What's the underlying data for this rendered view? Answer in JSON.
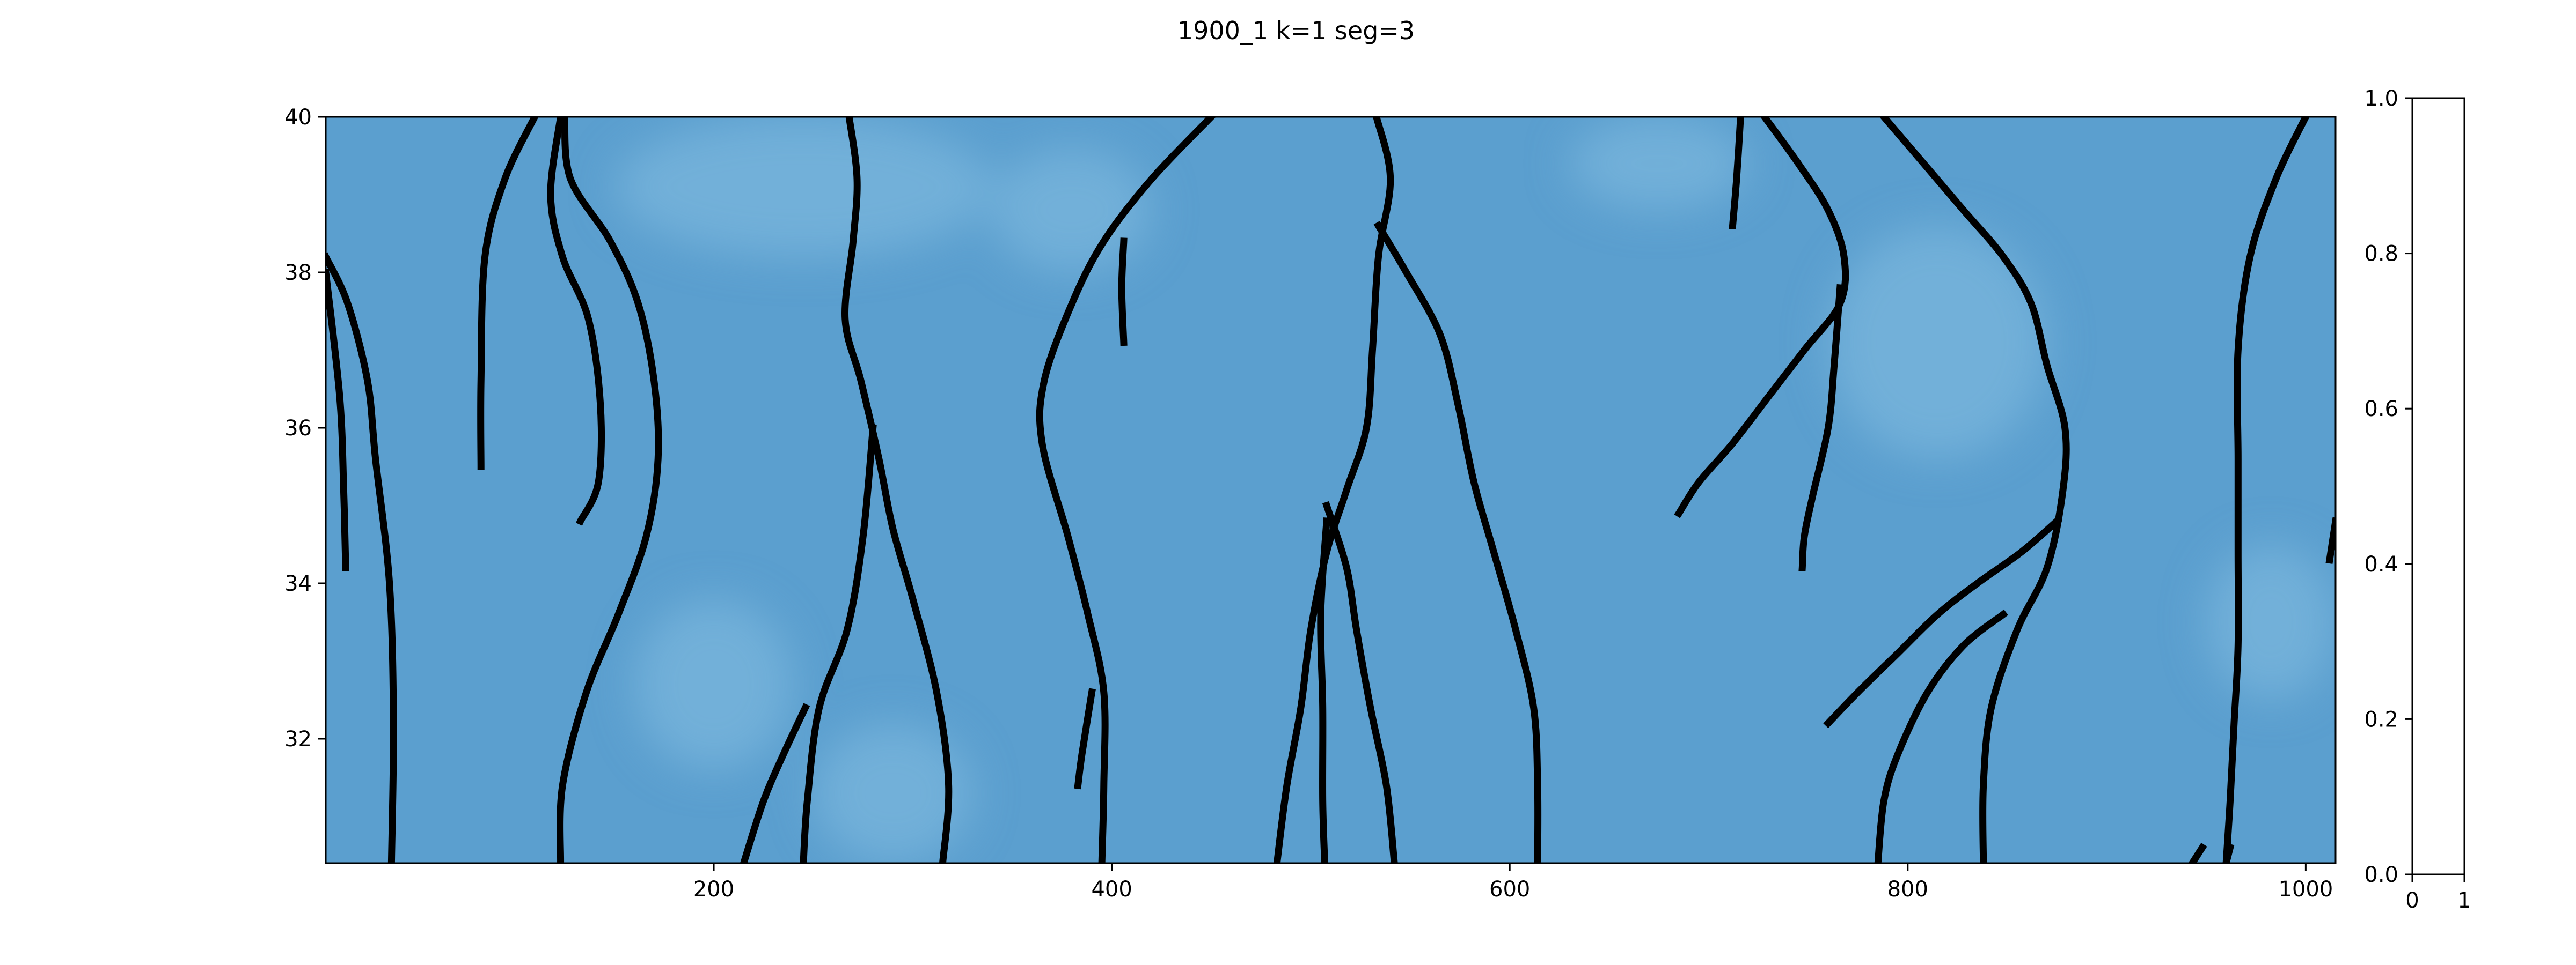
{
  "figure": {
    "title": "1900_1 k=1   seg=3"
  },
  "chart_data": [
    {
      "type": "heatmap",
      "title": "1900_1 k=1   seg=3",
      "xlabel": "",
      "ylabel": "",
      "xlim": [
        5,
        1015
      ],
      "ylim": [
        30.4,
        40.0
      ],
      "x_ticks": [
        200,
        400,
        600,
        800,
        1000
      ],
      "x_tick_labels": [
        "200",
        "400",
        "600",
        "800",
        "1000"
      ],
      "y_ticks": [
        32,
        34,
        36,
        38,
        40
      ],
      "y_tick_labels": [
        "32",
        "34",
        "36",
        "38",
        "40"
      ],
      "grid": false,
      "colors": {
        "field": "#5b9fcf",
        "field_light": "#7ab5dc",
        "contour": "#000000"
      },
      "light_patches": [
        {
          "x": [
            150,
            340
          ],
          "y": [
            38.2,
            40.0
          ]
        },
        {
          "x": [
            340,
            420
          ],
          "y": [
            38.0,
            39.6
          ]
        },
        {
          "x": [
            630,
            720
          ],
          "y": [
            38.8,
            40.0
          ]
        },
        {
          "x": [
            760,
            870
          ],
          "y": [
            35.6,
            38.6
          ]
        },
        {
          "x": [
            160,
            240
          ],
          "y": [
            31.6,
            33.8
          ]
        },
        {
          "x": [
            950,
            1015
          ],
          "y": [
            32.5,
            34.5
          ]
        },
        {
          "x": [
            250,
            330
          ],
          "y": [
            30.4,
            32.2
          ]
        }
      ],
      "series": [
        {
          "points": [
            [
              5,
              38.2
            ],
            [
              16,
              37.6
            ],
            [
              26,
              36.6
            ],
            [
              30,
              35.6
            ],
            [
              37,
              34.0
            ],
            [
              39,
              32.2
            ],
            [
              38,
              30.4
            ]
          ]
        },
        {
          "points": [
            [
              5,
              38.0
            ],
            [
              12,
              36.4
            ],
            [
              14,
              35.2
            ],
            [
              15,
              34.2
            ]
          ]
        },
        {
          "points": [
            [
              110,
              40.0
            ],
            [
              95,
              39.2
            ],
            [
              85,
              38.2
            ],
            [
              83,
              36.6
            ],
            [
              83,
              35.5
            ]
          ]
        },
        {
          "points": [
            [
              123,
              40.0
            ],
            [
              118,
              39.0
            ],
            [
              124,
              38.2
            ],
            [
              137,
              37.4
            ],
            [
              143,
              36.3
            ],
            [
              142,
              35.3
            ],
            [
              133,
              34.8
            ]
          ]
        },
        {
          "points": [
            [
              125,
              40.0
            ],
            [
              128,
              39.2
            ],
            [
              148,
              38.4
            ],
            [
              162,
              37.6
            ],
            [
              170,
              36.6
            ],
            [
              172,
              35.6
            ],
            [
              166,
              34.6
            ],
            [
              152,
              33.6
            ],
            [
              136,
              32.6
            ],
            [
              124,
              31.4
            ],
            [
              123,
              30.4
            ]
          ]
        },
        {
          "points": [
            [
              268,
              40.0
            ],
            [
              272,
              39.2
            ],
            [
              270,
              38.4
            ],
            [
              266,
              37.4
            ],
            [
              274,
              36.6
            ],
            [
              283,
              35.6
            ],
            [
              290,
              34.7
            ],
            [
              300,
              33.8
            ],
            [
              312,
              32.6
            ],
            [
              318,
              31.4
            ],
            [
              315,
              30.4
            ]
          ]
        },
        {
          "points": [
            [
              280,
              36.0
            ],
            [
              275,
              34.6
            ],
            [
              267,
              33.4
            ],
            [
              253,
              32.4
            ],
            [
              247,
              31.2
            ],
            [
              245,
              30.4
            ]
          ]
        },
        {
          "points": [
            [
              246,
              32.4
            ],
            [
              235,
              31.8
            ],
            [
              225,
              31.2
            ],
            [
              215,
              30.4
            ]
          ]
        },
        {
          "points": [
            [
              450,
              40.0
            ],
            [
              420,
              39.2
            ],
            [
              396,
              38.4
            ],
            [
              380,
              37.6
            ],
            [
              366,
              36.6
            ],
            [
              365,
              35.8
            ],
            [
              378,
              34.6
            ],
            [
              388,
              33.6
            ],
            [
              396,
              32.6
            ],
            [
              396,
              31.4
            ],
            [
              395,
              30.4
            ]
          ]
        },
        {
          "points": [
            [
              406,
              38.4
            ],
            [
              405,
              37.8
            ],
            [
              406,
              37.1
            ]
          ]
        },
        {
          "points": [
            [
              390,
              32.6
            ],
            [
              385,
              31.8
            ],
            [
              383,
              31.4
            ]
          ]
        },
        {
          "points": [
            [
              533,
              40.0
            ],
            [
              540,
              39.2
            ],
            [
              534,
              38.2
            ],
            [
              531,
              37.0
            ],
            [
              528,
              36.0
            ],
            [
              518,
              35.2
            ],
            [
              508,
              34.4
            ],
            [
              500,
              33.4
            ],
            [
              495,
              32.4
            ],
            [
              488,
              31.4
            ],
            [
              483,
              30.4
            ]
          ]
        },
        {
          "points": [
            [
              534,
              38.6
            ],
            [
              548,
              38.0
            ],
            [
              565,
              37.2
            ],
            [
              574,
              36.3
            ],
            [
              582,
              35.3
            ],
            [
              592,
              34.4
            ],
            [
              603,
              33.4
            ],
            [
              612,
              32.4
            ],
            [
              614,
              31.4
            ],
            [
              614,
              30.4
            ]
          ]
        },
        {
          "points": [
            [
              508,
              35.0
            ],
            [
              518,
              34.2
            ],
            [
              523,
              33.4
            ],
            [
              530,
              32.4
            ],
            [
              538,
              31.4
            ],
            [
              542,
              30.4
            ]
          ]
        },
        {
          "points": [
            [
              508,
              34.8
            ],
            [
              505,
              33.6
            ],
            [
              506,
              32.4
            ],
            [
              506,
              31.2
            ],
            [
              507,
              30.4
            ]
          ]
        },
        {
          "points": [
            [
              716,
              40.0
            ],
            [
              714,
              39.2
            ],
            [
              712,
              38.6
            ]
          ]
        },
        {
          "points": [
            [
              728,
              40.0
            ],
            [
              745,
              39.4
            ],
            [
              760,
              38.8
            ],
            [
              768,
              38.2
            ],
            [
              766,
              37.6
            ],
            [
              748,
              37.0
            ],
            [
              730,
              36.4
            ],
            [
              712,
              35.8
            ],
            [
              695,
              35.3
            ],
            [
              685,
              34.9
            ]
          ]
        },
        {
          "points": [
            [
              766,
              37.8
            ],
            [
              763,
              36.8
            ],
            [
              760,
              36.0
            ],
            [
              752,
              35.1
            ],
            [
              748,
              34.6
            ],
            [
              747,
              34.2
            ]
          ]
        },
        {
          "points": [
            [
              788,
              40.0
            ],
            [
              808,
              39.4
            ],
            [
              828,
              38.8
            ],
            [
              848,
              38.2
            ],
            [
              862,
              37.6
            ],
            [
              870,
              36.8
            ],
            [
              879,
              36.0
            ],
            [
              878,
              35.2
            ],
            [
              870,
              34.2
            ],
            [
              855,
              33.4
            ],
            [
              842,
              32.4
            ],
            [
              838,
              31.4
            ],
            [
              838,
              30.4
            ]
          ]
        },
        {
          "points": [
            [
              875,
              34.8
            ],
            [
              857,
              34.4
            ],
            [
              835,
              34.0
            ],
            [
              815,
              33.6
            ],
            [
              795,
              33.1
            ],
            [
              775,
              32.6
            ],
            [
              760,
              32.2
            ]
          ]
        },
        {
          "points": [
            [
              848,
              33.6
            ],
            [
              828,
              33.2
            ],
            [
              810,
              32.6
            ],
            [
              795,
              31.8
            ],
            [
              788,
              31.2
            ],
            [
              785,
              30.4
            ]
          ]
        },
        {
          "points": [
            [
              1000,
              40.0
            ],
            [
              985,
              39.2
            ],
            [
              972,
              38.2
            ],
            [
              966,
              37.0
            ],
            [
              966,
              35.6
            ],
            [
              966,
              34.4
            ],
            [
              966,
              33.2
            ],
            [
              964,
              32.2
            ],
            [
              962,
              31.2
            ],
            [
              960,
              30.4
            ]
          ]
        },
        {
          "points": [
            [
              1015,
              34.8
            ],
            [
              1012,
              34.3
            ]
          ]
        },
        {
          "points": [
            [
              948,
              30.6
            ],
            [
              943,
              30.4
            ]
          ]
        },
        {
          "points": [
            [
              962,
              30.6
            ],
            [
              960,
              30.4
            ]
          ]
        }
      ]
    },
    {
      "type": "heatmap",
      "role": "colorbar",
      "xlim": [
        0,
        1
      ],
      "ylim": [
        0.0,
        1.0
      ],
      "x_ticks": [
        0,
        1
      ],
      "x_tick_labels": [
        "0",
        "1"
      ],
      "y_ticks": [
        0.0,
        0.2,
        0.4,
        0.6,
        0.8,
        1.0
      ],
      "y_tick_labels": [
        "0.0",
        "0.2",
        "0.4",
        "0.6",
        "0.8",
        "1.0"
      ],
      "colors": {
        "fill": "#ffffff"
      }
    }
  ]
}
